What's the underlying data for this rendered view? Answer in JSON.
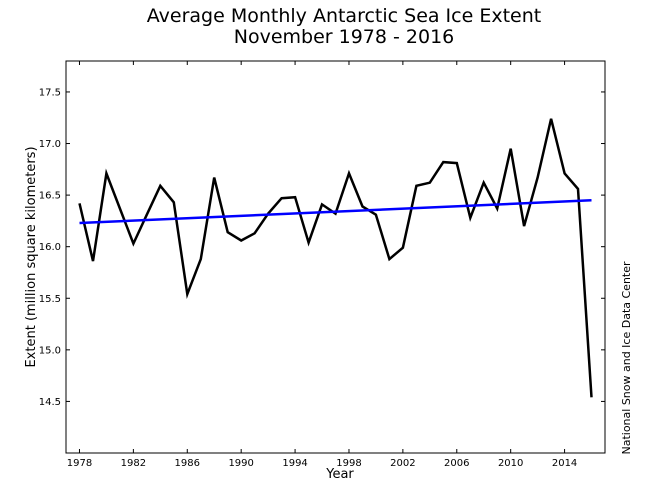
{
  "chart_data": {
    "type": "line",
    "title": "Average Monthly Antarctic Sea Ice Extent",
    "subtitle": "November 1978 - 2016",
    "xlabel": "Year",
    "ylabel": "Extent (million square kilometers)",
    "credit": "National Snow and Ice Data Center",
    "xlim": [
      1977,
      2017
    ],
    "ylim": [
      14.0,
      17.8
    ],
    "x_ticks": [
      1978,
      1982,
      1986,
      1990,
      1994,
      1998,
      2002,
      2006,
      2010,
      2014
    ],
    "y_ticks": [
      "14.5",
      "15.0",
      "15.5",
      "16.0",
      "16.5",
      "17.0",
      "17.5"
    ],
    "grid": false,
    "series": [
      {
        "color": "#000000",
        "x": [
          1978,
          1979,
          1980,
          1981,
          1982,
          1983,
          1984,
          1985,
          1986,
          1987,
          1988,
          1989,
          1990,
          1991,
          1992,
          1993,
          1994,
          1995,
          1996,
          1997,
          1998,
          1999,
          2000,
          2001,
          2002,
          2003,
          2004,
          2005,
          2006,
          2007,
          2008,
          2009,
          2010,
          2011,
          2012,
          2013,
          2014,
          2015,
          2016
        ],
        "values": [
          16.42,
          15.86,
          16.71,
          16.37,
          16.03,
          16.31,
          16.59,
          16.43,
          15.54,
          15.88,
          16.67,
          16.14,
          16.06,
          16.13,
          16.32,
          16.47,
          16.48,
          16.04,
          16.41,
          16.32,
          16.71,
          16.39,
          16.31,
          15.88,
          15.99,
          16.59,
          16.62,
          16.82,
          16.81,
          16.28,
          16.62,
          16.37,
          16.95,
          16.2,
          16.67,
          17.24,
          16.71,
          16.56,
          14.54
        ]
      },
      {
        "color": "#0000ff",
        "x": [
          1978,
          2016
        ],
        "values": [
          16.23,
          16.45
        ]
      }
    ]
  }
}
